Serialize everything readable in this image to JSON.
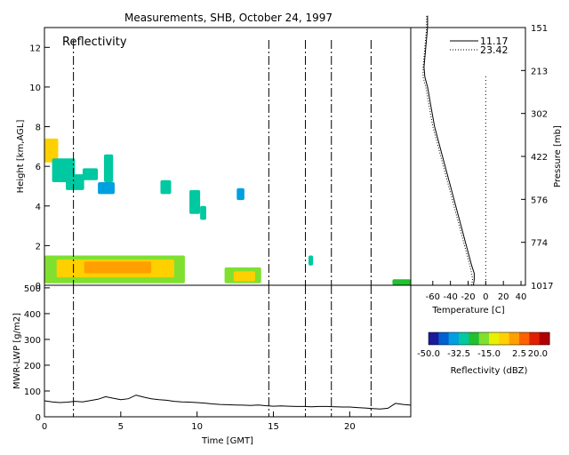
{
  "chart_data": [
    {
      "type": "heatmap",
      "title": "Measurements, SHB, October 24, 1997",
      "panel_label": "Reflectivity",
      "ylabel": "Height [km,AGL]",
      "xlim": [
        0,
        24
      ],
      "ylim": [
        0,
        13
      ],
      "yticks": [
        0,
        2,
        4,
        6,
        8,
        10,
        12
      ],
      "vertical_dashed_lines": [
        1.9,
        14.7,
        17.1,
        18.8,
        21.4
      ],
      "colorbar": {
        "label": "Reflectivity (dBZ)",
        "range": [
          -50.0,
          20.0
        ],
        "ticks": [
          "-50.0",
          "-32.5",
          "-15.0",
          "2.5",
          "20.0"
        ],
        "colors": [
          "#1a1a9a",
          "#0060d0",
          "#00a0e0",
          "#00c8a0",
          "#20c030",
          "#80e030",
          "#e8f000",
          "#ffd000",
          "#ffa000",
          "#ff6000",
          "#e02000",
          "#b00000"
        ]
      },
      "echo_regions": [
        {
          "x": [
            0,
            0.9
          ],
          "y": [
            6.2,
            7.4
          ],
          "dbz": -5
        },
        {
          "x": [
            0.5,
            2.0
          ],
          "y": [
            5.2,
            6.4
          ],
          "dbz": -30
        },
        {
          "x": [
            1.4,
            2.6
          ],
          "y": [
            4.8,
            5.6
          ],
          "dbz": -32
        },
        {
          "x": [
            2.5,
            3.5
          ],
          "y": [
            5.3,
            5.9
          ],
          "dbz": -30
        },
        {
          "x": [
            3.5,
            4.6
          ],
          "y": [
            4.6,
            5.2
          ],
          "dbz": -35
        },
        {
          "x": [
            3.9,
            4.5
          ],
          "y": [
            5.2,
            6.6
          ],
          "dbz": -30
        },
        {
          "x": [
            7.6,
            8.3
          ],
          "y": [
            4.6,
            5.3
          ],
          "dbz": -32
        },
        {
          "x": [
            9.5,
            10.2
          ],
          "y": [
            3.6,
            4.8
          ],
          "dbz": -32
        },
        {
          "x": [
            10.2,
            10.6
          ],
          "y": [
            3.3,
            4.0
          ],
          "dbz": -30
        },
        {
          "x": [
            12.6,
            13.1
          ],
          "y": [
            4.3,
            4.9
          ],
          "dbz": -35
        },
        {
          "x": [
            17.3,
            17.6
          ],
          "y": [
            1.0,
            1.5
          ],
          "dbz": -30
        },
        {
          "x": [
            0,
            9.2
          ],
          "y": [
            0.1,
            1.5
          ],
          "dbz": -20
        },
        {
          "x": [
            0.8,
            8.5
          ],
          "y": [
            0.4,
            1.3
          ],
          "dbz": -5
        },
        {
          "x": [
            2.6,
            7.0
          ],
          "y": [
            0.6,
            1.2
          ],
          "dbz": 2
        },
        {
          "x": [
            11.8,
            14.2
          ],
          "y": [
            0.1,
            0.9
          ],
          "dbz": -20
        },
        {
          "x": [
            12.4,
            13.8
          ],
          "y": [
            0.2,
            0.7
          ],
          "dbz": -5
        },
        {
          "x": [
            22.8,
            24
          ],
          "y": [
            0.0,
            0.3
          ],
          "dbz": -25
        }
      ]
    },
    {
      "type": "line",
      "xlabel": "Temperature [C]",
      "ylabel": "Pressure [mb]",
      "xlim": [
        -85,
        45
      ],
      "xticks": [
        -60,
        -40,
        -20,
        0,
        20,
        40
      ],
      "ytick_labels": [
        "1017",
        "774",
        "576",
        "422",
        "302",
        "213",
        "151"
      ],
      "series": [
        {
          "name": "11.17",
          "style": "solid",
          "temperature": [
            -14,
            -13,
            -13,
            -16,
            -19,
            -22,
            -28,
            -34,
            -40,
            -46,
            -52,
            -58,
            -62,
            -66,
            -69,
            -70,
            -69,
            -68,
            -67,
            -66,
            -66
          ],
          "height_km": [
            0.0,
            0.3,
            0.6,
            1.0,
            1.5,
            2.0,
            3.0,
            4.0,
            5.0,
            6.0,
            7.0,
            8.0,
            9.0,
            10.0,
            10.5,
            11.0,
            11.5,
            12.0,
            12.5,
            13.0,
            13.6
          ]
        },
        {
          "name": "23.42",
          "style": "dotted",
          "temperature": [
            -16,
            -15,
            -16,
            -18,
            -21,
            -24,
            -30,
            -36,
            -42,
            -48,
            -54,
            -60,
            -64,
            -68,
            -71,
            -71,
            -70,
            -69,
            -68,
            -67,
            -67
          ],
          "height_km": [
            0.0,
            0.3,
            0.6,
            1.0,
            1.5,
            2.0,
            3.0,
            4.0,
            5.0,
            6.0,
            7.0,
            8.0,
            9.0,
            10.0,
            10.5,
            11.0,
            11.5,
            12.0,
            12.5,
            13.0,
            13.6
          ]
        }
      ],
      "reference_line_temperature": 0
    },
    {
      "type": "line",
      "ylabel": "MWR-LWP [g/m2]",
      "xlabel": "Time [GMT]",
      "xlim": [
        0,
        24
      ],
      "ylim": [
        0,
        510
      ],
      "xticks": [
        0,
        5,
        10,
        15,
        20
      ],
      "yticks": [
        0,
        100,
        200,
        300,
        400,
        500
      ],
      "vertical_dashed_lines": [
        1.9,
        14.7,
        17.1,
        18.8,
        21.4
      ],
      "x": [
        0,
        0.5,
        1,
        1.5,
        2,
        2.5,
        3,
        3.5,
        4,
        4.5,
        5,
        5.5,
        6,
        6.5,
        7,
        7.5,
        8,
        8.5,
        9,
        9.5,
        10,
        10.5,
        11,
        11.5,
        12,
        12.5,
        13,
        13.5,
        14,
        14.5,
        15,
        15.5,
        16,
        16.5,
        17,
        17.5,
        18,
        18.5,
        19,
        19.5,
        20,
        20.5,
        21,
        21.5,
        22,
        22.5,
        23,
        23.5,
        24
      ],
      "y": [
        62,
        58,
        55,
        57,
        60,
        58,
        63,
        68,
        78,
        72,
        66,
        70,
        84,
        76,
        70,
        66,
        64,
        60,
        58,
        57,
        55,
        53,
        50,
        48,
        47,
        46,
        45,
        44,
        46,
        43,
        41,
        42,
        41,
        40,
        40,
        39,
        40,
        40,
        39,
        38,
        38,
        36,
        34,
        32,
        30,
        33,
        52,
        48,
        45
      ]
    }
  ]
}
